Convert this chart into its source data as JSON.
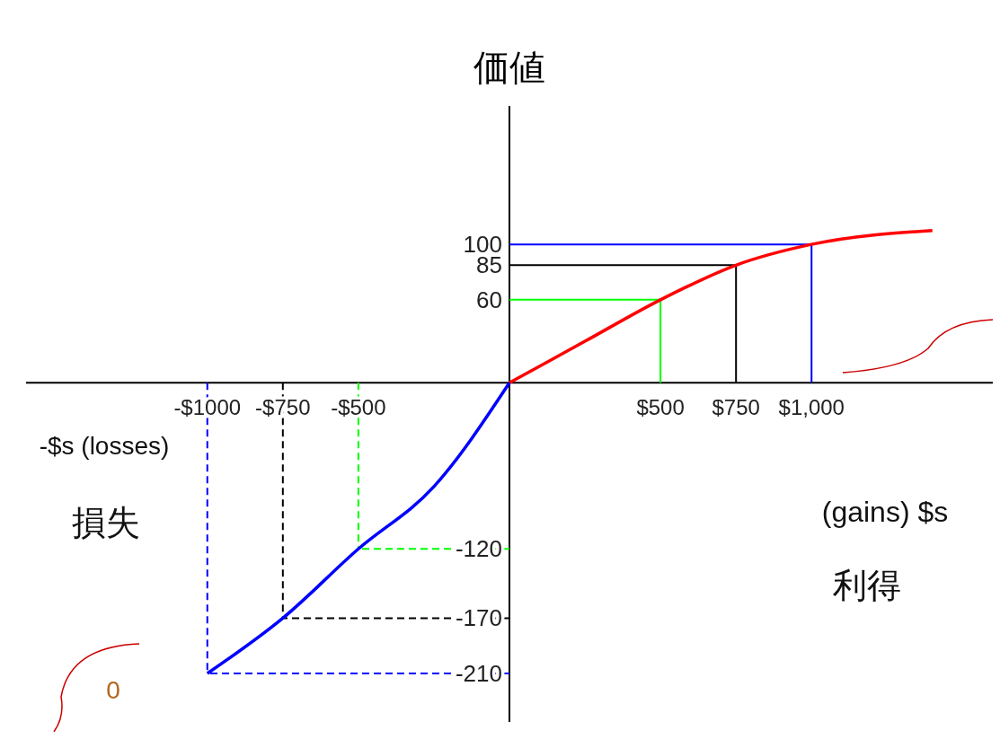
{
  "chart_data": {
    "type": "line",
    "ylabel": "価値",
    "xlim": [
      -1600,
      1600
    ],
    "ylim": [
      -245,
      200
    ],
    "xticks": [
      {
        "value": -1000,
        "label": "-$1000"
      },
      {
        "value": -750,
        "label": "-$750"
      },
      {
        "value": -500,
        "label": "-$500"
      },
      {
        "value": 500,
        "label": "$500"
      },
      {
        "value": 750,
        "label": "$750"
      },
      {
        "value": 1000,
        "label": "$1,000"
      }
    ],
    "yticks": [
      -210,
      -170,
      -120,
      60,
      85,
      100
    ],
    "series": [
      {
        "color": "#ff0000",
        "x": [
          0,
          250,
          500,
          750,
          1000,
          1400
        ],
        "values": [
          0,
          30,
          60,
          85,
          100,
          110
        ]
      },
      {
        "color": "#0000ff",
        "x": [
          -1000,
          -750,
          -500,
          -250,
          0
        ],
        "values": [
          -210,
          -170,
          -120,
          -75,
          0
        ]
      }
    ],
    "ref_lines": [
      {
        "axis": "x",
        "value": 500,
        "color": "#00ff00",
        "line_style": "solid"
      },
      {
        "axis": "y",
        "value": 60,
        "color": "#00ff00",
        "line_style": "solid"
      },
      {
        "axis": "x",
        "value": 750,
        "color": "#000000",
        "line_style": "solid"
      },
      {
        "axis": "y",
        "value": 85,
        "color": "#000000",
        "line_style": "solid"
      },
      {
        "axis": "x",
        "value": 1000,
        "color": "#0000ff",
        "line_style": "solid"
      },
      {
        "axis": "y",
        "value": 100,
        "color": "#0000ff",
        "line_style": "solid"
      },
      {
        "axis": "x",
        "value": -500,
        "color": "#00ff00",
        "line_style": "dashed"
      },
      {
        "axis": "y",
        "value": -120,
        "color": "#00ff00",
        "line_style": "dashed"
      },
      {
        "axis": "x",
        "value": -750,
        "color": "#000000",
        "line_style": "dashed"
      },
      {
        "axis": "y",
        "value": -170,
        "color": "#000000",
        "line_style": "dashed"
      },
      {
        "axis": "x",
        "value": -1000,
        "color": "#0000ff",
        "line_style": "dashed"
      },
      {
        "axis": "y",
        "value": -210,
        "color": "#0000ff",
        "line_style": "dashed"
      }
    ],
    "annotations": [
      "-$s (losses)",
      "損失",
      "(gains) $s",
      "利得",
      "0"
    ]
  }
}
